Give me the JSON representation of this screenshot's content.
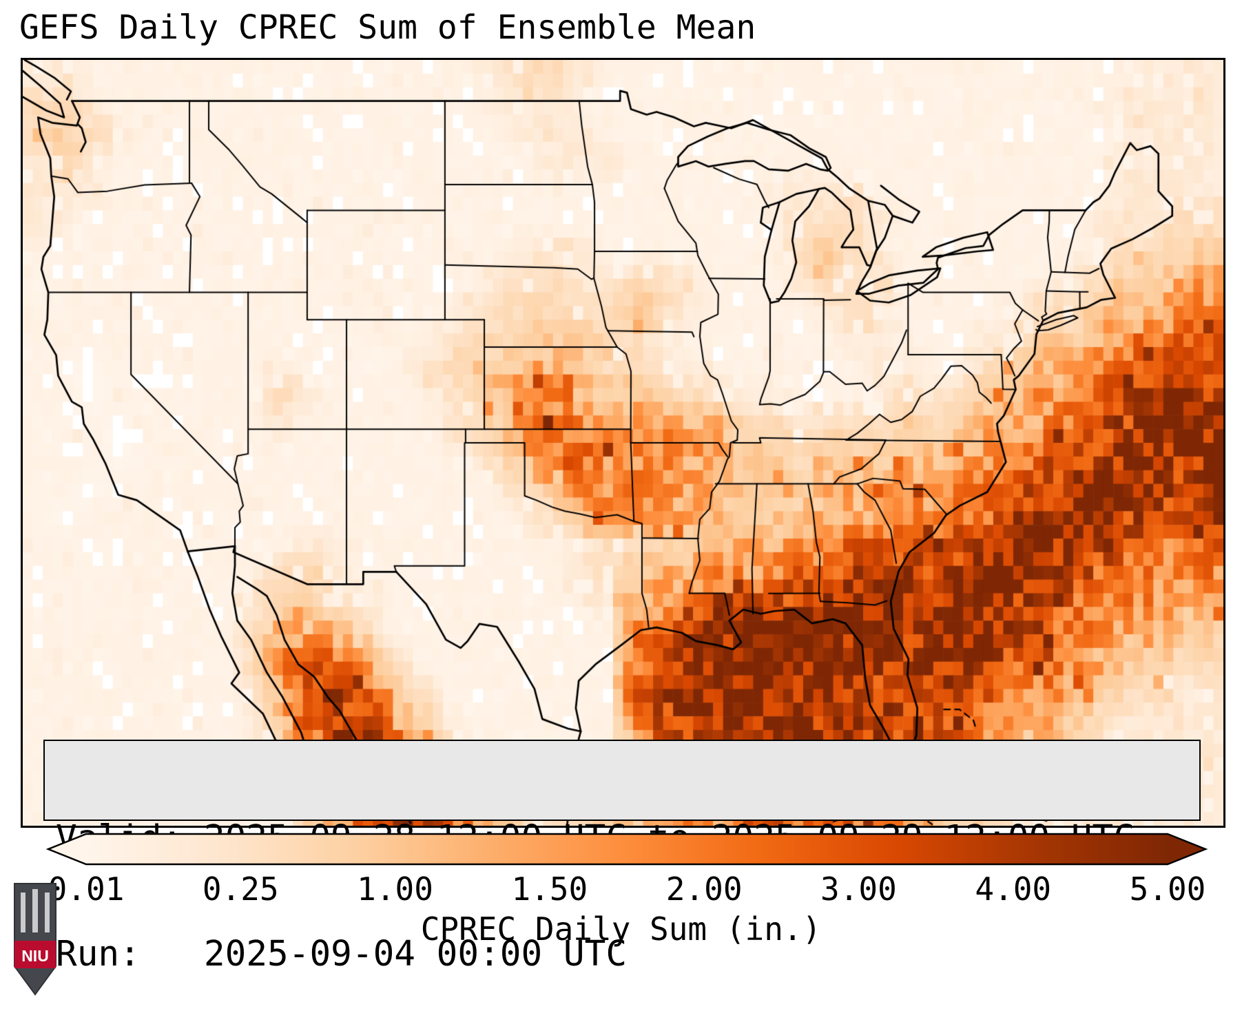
{
  "header": {
    "title": "GEFS Daily CPREC Sum of Ensemble Mean"
  },
  "map": {
    "info_box": {
      "valid_line": "Valid: 2025-09-28 12:00 UTC to 2025-09-29 12:00 UTC",
      "run_line": "Run:   2025-09-04 00:00 UTC"
    }
  },
  "colorbar": {
    "label": "CPREC Daily Sum (in.)",
    "tick_labels": [
      "0.01",
      "0.25",
      "1.00",
      "1.50",
      "2.00",
      "3.00",
      "4.00",
      "5.00"
    ]
  },
  "logo": {
    "text": "NIU",
    "banner_color": "#ba0c2f",
    "shield_color": "#44474c"
  },
  "chart_data": {
    "type": "heatmap",
    "title": "GEFS Daily CPREC Sum of Ensemble Mean",
    "units": "inches",
    "valid": "2025-09-28 12:00 UTC to 2025-09-29 12:00 UTC",
    "run": "2025-09-04 00:00 UTC",
    "colorbar_label": "CPREC Daily Sum (in.)",
    "colorbar_ticks": [
      0.01,
      0.25,
      1.0,
      1.5,
      2.0,
      3.0,
      4.0,
      5.0
    ],
    "colorbar_colors": [
      "#fff5eb",
      "#fee6ce",
      "#fdd0a2",
      "#fdae6b",
      "#fd8d3c",
      "#f16913",
      "#d94801",
      "#a63603",
      "#7f2704"
    ],
    "under_color": "#ffffff",
    "extent": {
      "lon": [
        -125.5,
        -64.5
      ],
      "lat": [
        22.5,
        50.5
      ]
    },
    "cell_size_deg": 0.5,
    "value_levels": [
      0,
      0.05,
      0.15,
      0.4,
      0.8,
      1.25,
      1.75,
      2.5,
      3.5,
      4.75
    ],
    "grid_rows": [
      [
        "22111111111",
        "11111123321",
        "11111111111",
        "11111111222"
      ],
      [
        "33211111111",
        "11111122211",
        "11111111111",
        "11111112222"
      ],
      [
        "34321111111",
        "11111112221",
        "11111111111",
        "11111112222"
      ],
      [
        "23211111111",
        "11111111222",
        "11111111111",
        "11111112222"
      ],
      [
        "22211111111",
        "11111111111",
        "11111222211",
        "11111112222"
      ],
      [
        "22111111111",
        "11111111111",
        "11111123321",
        "11111122233"
      ],
      [
        "11111111111",
        "11111112221",
        "11111134311",
        "11111123344"
      ],
      [
        "11111111111",
        "11111123322",
        "33211123231",
        "11111234455"
      ],
      [
        "11111111111",
        "11111233333",
        "43211112321",
        "11123345566"
      ],
      [
        "11111111111",
        "11112334443",
        "32111111221",
        "11234456677"
      ],
      [
        "11011111121",
        "11123445543",
        "32211111122",
        "12345567788"
      ],
      [
        "11011111132",
        "11112356654",
        "54332211123",
        "23456678898"
      ],
      [
        "11101111121",
        "11112346765",
        "66553323334",
        "34556788998"
      ],
      [
        "11101111111",
        "11111235676",
        "66554434445",
        "45667889989"
      ],
      [
        "11011111111",
        "11111123466",
        "66554445556",
        "56778899889"
      ],
      [
        "10111111111",
        "11111112356",
        "55544445556",
        "67788998878"
      ],
      [
        "11111111112",
        "21111111123",
        "34455566777",
        "78899887767"
      ],
      [
        "11111111133",
        "21111111123",
        "45566677888",
        "88998877666"
      ],
      [
        "11111111244",
        "32111111112",
        "56788889999",
        "89988766655"
      ],
      [
        "11111111355",
        "53111111111",
        "67899999998",
        "99887665544"
      ],
      [
        "11111111367",
        "75311111111",
        "78999999988",
        "98877654433"
      ],
      [
        "11111111258",
        "87531111111",
        "78999999888",
        "88766543322"
      ],
      [
        "11111111247",
        "88642111111",
        "68899998888",
        "87655432222"
      ],
      [
        "11111111136",
        "78853211112",
        "57788888887",
        "76544322222"
      ],
      [
        "11111111125",
        "68876432223",
        "46677788877",
        "65433222222"
      ],
      [
        "11111111114",
        "57887653334",
        "45667777766",
        "54322222222"
      ]
    ]
  }
}
